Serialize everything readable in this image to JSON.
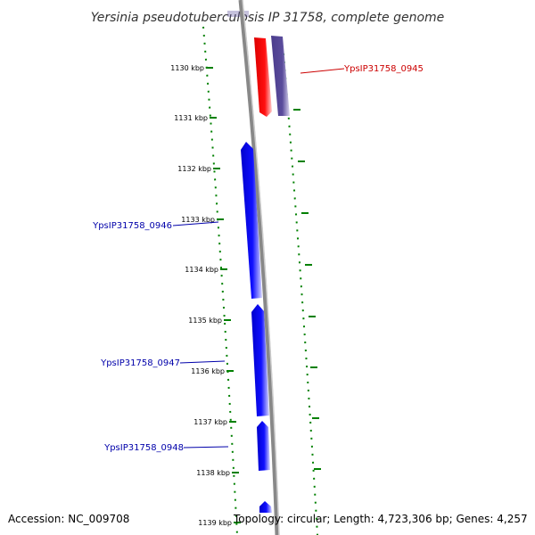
{
  "title": "Yersinia pseudotuberculosis IP 31758, complete genome",
  "ticks": [
    "1130 kbp",
    "1131 kbp",
    "1132 kbp",
    "1133 kbp",
    "1134 kbp",
    "1135 kbp",
    "1136 kbp",
    "1137 kbp",
    "1138 kbp",
    "1139 kbp"
  ],
  "genes": [
    {
      "id": "YpsIP31758_0945",
      "label": "YpsIP31758_0945",
      "color": "#cc0000",
      "strand": "reverse"
    },
    {
      "id": "YpsIP31758_0946",
      "label": "YpsIP31758_0946",
      "color": "#0000aa",
      "strand": "forward"
    },
    {
      "id": "YpsIP31758_0947",
      "label": "YpsIP31758_0947",
      "color": "#0000aa",
      "strand": "forward"
    },
    {
      "id": "YpsIP31758_0948",
      "label": "YpsIP31758_0948",
      "color": "#0000aa",
      "strand": "forward"
    }
  ],
  "colors": {
    "forward_gene": "#0000ff",
    "reverse_gene": "#ff0000",
    "other_feature": "#5a4c9c",
    "backbone": "#808080",
    "gc_skew": "#008000"
  },
  "footer": {
    "accession": "Accession: NC_009708",
    "topology": "Topology: circular; Length: 4,723,306 bp; Genes: 4,257"
  }
}
